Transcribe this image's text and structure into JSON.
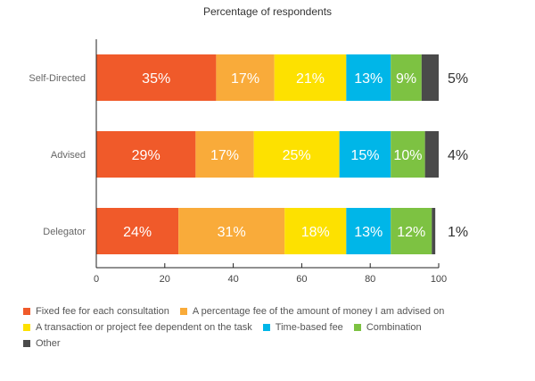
{
  "chart_data": {
    "type": "bar",
    "orientation": "horizontal",
    "stacked": true,
    "title": "Percentage of respondents",
    "categories": [
      "Self-Directed",
      "Advised",
      "Delegator"
    ],
    "xlim": [
      0,
      100
    ],
    "xticks": [
      0,
      20,
      40,
      60,
      80,
      100
    ],
    "grid": false,
    "legend_position": "bottom",
    "series": [
      {
        "name": "Fixed fee for each consultation",
        "color": "#f05a2a",
        "values": [
          35,
          29,
          24
        ],
        "labels": [
          "35%",
          "29%",
          "24%"
        ]
      },
      {
        "name": "A percentage fee of the amount of money I am advised on",
        "color": "#f9ab3a",
        "values": [
          17,
          17,
          31
        ],
        "labels": [
          "17%",
          "17%",
          "31%"
        ]
      },
      {
        "name": "A transaction or project fee dependent on the task",
        "color": "#fde100",
        "values": [
          21,
          25,
          18
        ],
        "labels": [
          "21%",
          "25%",
          "18%"
        ]
      },
      {
        "name": "Time-based fee",
        "color": "#00b6e8",
        "values": [
          13,
          15,
          13
        ],
        "labels": [
          "13%",
          "15%",
          "13%"
        ]
      },
      {
        "name": "Combination",
        "color": "#7dc242",
        "values": [
          9,
          10,
          12
        ],
        "labels": [
          "9%",
          "10%",
          "12%"
        ]
      },
      {
        "name": "Other",
        "color": "#4a4a4a",
        "values": [
          5,
          4,
          1
        ],
        "labels": [
          "5%",
          "4%",
          "1%"
        ]
      }
    ]
  }
}
